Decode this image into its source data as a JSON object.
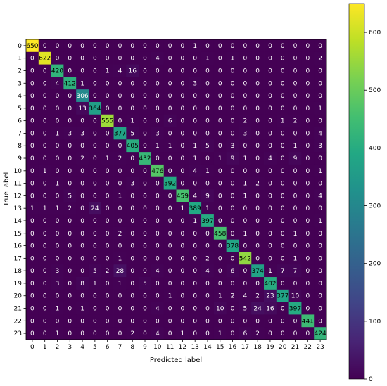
{
  "chart_data": {
    "type": "heatmap",
    "title": "",
    "xlabel": "Predicted label",
    "ylabel": "True label",
    "x_categories": [
      "0",
      "1",
      "2",
      "3",
      "4",
      "5",
      "6",
      "7",
      "8",
      "9",
      "10",
      "11",
      "12",
      "13",
      "14",
      "15",
      "16",
      "17",
      "18",
      "19",
      "20",
      "21",
      "22",
      "23"
    ],
    "y_categories": [
      "0",
      "1",
      "2",
      "3",
      "4",
      "5",
      "6",
      "7",
      "8",
      "9",
      "10",
      "11",
      "12",
      "13",
      "14",
      "15",
      "16",
      "17",
      "18",
      "19",
      "20",
      "21",
      "22",
      "23"
    ],
    "colormap": "viridis",
    "vmin": 0,
    "vmax": 650,
    "colorbar_ticks": [
      0,
      100,
      200,
      300,
      400,
      500,
      600
    ],
    "matrix": [
      [
        650,
        0,
        0,
        0,
        0,
        0,
        0,
        0,
        0,
        0,
        0,
        0,
        0,
        1,
        0,
        0,
        0,
        0,
        0,
        0,
        0,
        0,
        0,
        0
      ],
      [
        0,
        622,
        0,
        0,
        0,
        0,
        0,
        0,
        0,
        0,
        4,
        0,
        0,
        0,
        1,
        0,
        1,
        0,
        0,
        0,
        0,
        0,
        0,
        2
      ],
      [
        0,
        0,
        420,
        0,
        0,
        0,
        1,
        4,
        16,
        0,
        0,
        0,
        0,
        0,
        0,
        0,
        0,
        0,
        0,
        0,
        0,
        0,
        0,
        0
      ],
      [
        0,
        0,
        4,
        412,
        1,
        0,
        0,
        0,
        0,
        0,
        0,
        0,
        0,
        3,
        0,
        0,
        0,
        0,
        0,
        0,
        0,
        0,
        0,
        0
      ],
      [
        0,
        0,
        0,
        0,
        306,
        0,
        0,
        0,
        0,
        0,
        0,
        0,
        0,
        0,
        0,
        0,
        0,
        0,
        0,
        0,
        0,
        0,
        0,
        0
      ],
      [
        0,
        0,
        0,
        0,
        13,
        364,
        0,
        0,
        0,
        0,
        0,
        0,
        0,
        0,
        0,
        0,
        0,
        0,
        0,
        0,
        0,
        0,
        0,
        1
      ],
      [
        0,
        0,
        0,
        0,
        0,
        0,
        555,
        0,
        1,
        0,
        0,
        6,
        0,
        0,
        0,
        0,
        0,
        2,
        0,
        0,
        1,
        2,
        0,
        0
      ],
      [
        0,
        0,
        1,
        3,
        3,
        0,
        0,
        377,
        5,
        0,
        3,
        0,
        0,
        0,
        0,
        0,
        0,
        3,
        0,
        0,
        0,
        0,
        0,
        4
      ],
      [
        0,
        0,
        0,
        0,
        0,
        0,
        0,
        0,
        405,
        0,
        1,
        1,
        0,
        1,
        5,
        0,
        3,
        0,
        0,
        0,
        0,
        1,
        0,
        3
      ],
      [
        0,
        0,
        0,
        0,
        2,
        0,
        1,
        2,
        0,
        432,
        0,
        0,
        0,
        1,
        0,
        1,
        9,
        1,
        0,
        4,
        0,
        9,
        0,
        0
      ],
      [
        0,
        1,
        0,
        0,
        0,
        0,
        0,
        0,
        0,
        0,
        476,
        0,
        0,
        4,
        1,
        0,
        0,
        0,
        0,
        0,
        0,
        0,
        0,
        1
      ],
      [
        0,
        0,
        1,
        0,
        0,
        0,
        0,
        0,
        3,
        0,
        0,
        392,
        0,
        0,
        0,
        0,
        0,
        1,
        2,
        0,
        0,
        0,
        0,
        0
      ],
      [
        0,
        0,
        0,
        5,
        0,
        0,
        0,
        1,
        0,
        0,
        0,
        0,
        459,
        4,
        9,
        0,
        0,
        1,
        0,
        0,
        0,
        0,
        0,
        4
      ],
      [
        1,
        1,
        1,
        2,
        0,
        24,
        0,
        0,
        0,
        0,
        0,
        0,
        1,
        389,
        1,
        0,
        0,
        0,
        0,
        0,
        0,
        0,
        0,
        0
      ],
      [
        0,
        0,
        0,
        0,
        0,
        0,
        0,
        0,
        0,
        0,
        0,
        0,
        0,
        1,
        397,
        0,
        0,
        0,
        0,
        0,
        0,
        0,
        0,
        1
      ],
      [
        0,
        0,
        0,
        0,
        0,
        0,
        0,
        2,
        0,
        0,
        0,
        0,
        0,
        0,
        0,
        458,
        0,
        1,
        0,
        0,
        0,
        1,
        0,
        0
      ],
      [
        0,
        0,
        0,
        0,
        0,
        0,
        0,
        0,
        0,
        0,
        0,
        0,
        0,
        0,
        0,
        0,
        378,
        0,
        0,
        0,
        0,
        0,
        0,
        0
      ],
      [
        0,
        0,
        0,
        0,
        0,
        0,
        0,
        1,
        0,
        0,
        0,
        0,
        0,
        0,
        2,
        0,
        0,
        542,
        0,
        0,
        0,
        1,
        0,
        0
      ],
      [
        0,
        0,
        3,
        0,
        0,
        5,
        2,
        28,
        0,
        0,
        4,
        0,
        0,
        0,
        4,
        0,
        6,
        0,
        374,
        1,
        7,
        7,
        0,
        0
      ],
      [
        0,
        0,
        3,
        0,
        8,
        1,
        0,
        1,
        0,
        5,
        0,
        0,
        0,
        0,
        0,
        0,
        0,
        0,
        0,
        402,
        0,
        0,
        0,
        0
      ],
      [
        0,
        0,
        0,
        0,
        0,
        0,
        0,
        0,
        0,
        0,
        0,
        1,
        0,
        0,
        0,
        1,
        2,
        4,
        2,
        23,
        377,
        10,
        0,
        0
      ],
      [
        0,
        0,
        1,
        0,
        1,
        0,
        0,
        0,
        0,
        0,
        4,
        0,
        0,
        0,
        0,
        10,
        0,
        5,
        24,
        16,
        0,
        397,
        0,
        0
      ],
      [
        0,
        0,
        0,
        0,
        0,
        0,
        0,
        0,
        0,
        0,
        0,
        0,
        0,
        0,
        0,
        0,
        0,
        0,
        0,
        0,
        0,
        0,
        441,
        0
      ],
      [
        0,
        0,
        1,
        0,
        0,
        0,
        0,
        0,
        2,
        0,
        4,
        0,
        1,
        0,
        0,
        1,
        0,
        6,
        2,
        0,
        0,
        0,
        0,
        424
      ]
    ]
  }
}
